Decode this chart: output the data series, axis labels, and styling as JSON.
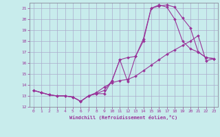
{
  "xlabel": "Windchill (Refroidissement éolien,°C)",
  "bg_color": "#c8ecec",
  "grid_color": "#aaaacc",
  "line_color": "#993399",
  "xlim": [
    -0.5,
    23.5
  ],
  "ylim": [
    12,
    21.5
  ],
  "yticks": [
    12,
    13,
    14,
    15,
    16,
    17,
    18,
    19,
    20,
    21
  ],
  "xticks": [
    0,
    1,
    2,
    3,
    4,
    5,
    6,
    7,
    8,
    9,
    10,
    11,
    12,
    13,
    14,
    15,
    16,
    17,
    18,
    19,
    20,
    21,
    22,
    23
  ],
  "line1_x": [
    0,
    1,
    2,
    3,
    4,
    5,
    6,
    7,
    8,
    9,
    10,
    11,
    12,
    13,
    14,
    15,
    16,
    17,
    18,
    19,
    20,
    21,
    22,
    23
  ],
  "line1_y": [
    13.5,
    13.3,
    13.1,
    13.0,
    13.0,
    12.9,
    12.5,
    13.0,
    13.2,
    13.2,
    14.4,
    16.3,
    16.5,
    16.6,
    18.2,
    21.0,
    21.2,
    21.3,
    21.1,
    20.1,
    19.2,
    17.0,
    16.5,
    16.4
  ],
  "line2_x": [
    0,
    1,
    2,
    3,
    4,
    5,
    6,
    7,
    8,
    9,
    10,
    11,
    12,
    13,
    14,
    15,
    16,
    17,
    18,
    19,
    20,
    21,
    22,
    23
  ],
  "line2_y": [
    13.5,
    13.3,
    13.1,
    13.0,
    13.0,
    12.9,
    12.5,
    13.0,
    13.3,
    13.8,
    14.2,
    14.4,
    14.5,
    14.8,
    15.3,
    15.8,
    16.3,
    16.8,
    17.2,
    17.6,
    18.0,
    18.5,
    16.2,
    16.4
  ],
  "line3_x": [
    0,
    1,
    2,
    3,
    4,
    5,
    6,
    7,
    8,
    9,
    10,
    11,
    12,
    13,
    14,
    15,
    16,
    17,
    18,
    19,
    20,
    21,
    22,
    23
  ],
  "line3_y": [
    13.5,
    13.3,
    13.1,
    13.0,
    13.0,
    12.9,
    12.5,
    13.0,
    13.2,
    13.5,
    14.4,
    16.3,
    14.3,
    16.6,
    18.0,
    21.0,
    21.3,
    21.1,
    20.0,
    18.0,
    17.3,
    17.0,
    16.5,
    16.4
  ]
}
